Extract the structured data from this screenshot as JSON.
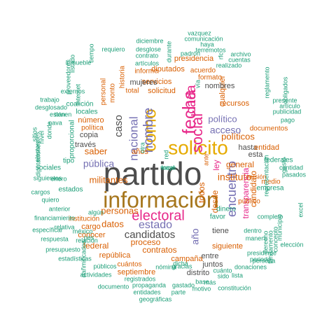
{
  "palette": {
    "gray": "#4d4d4d",
    "orange": "#d95f02",
    "purple": "#7570b3",
    "magenta": "#e7298a",
    "gold": "#e6ab02",
    "brown": "#a6761d",
    "teal": "#1b9e77",
    "olive": "#66a61e"
  },
  "words": [
    {
      "text": "partido",
      "color": "gray"
    },
    {
      "text": "información",
      "color": "brown"
    },
    {
      "text": "solicito",
      "color": "gold"
    },
    {
      "text": "electoral",
      "color": "magenta"
    },
    {
      "text": "como",
      "color": "gold"
    },
    {
      "text": "fecha",
      "color": "magenta"
    },
    {
      "text": "social",
      "color": "magenta"
    },
    {
      "text": "cada",
      "color": "magenta"
    },
    {
      "text": "nombre",
      "color": "purple"
    },
    {
      "text": "nacional",
      "color": "purple"
    },
    {
      "text": "encuentro",
      "color": "purple"
    },
    {
      "text": "estado",
      "color": "purple"
    },
    {
      "text": "candidatos",
      "color": "gray"
    },
    {
      "text": "acceso",
      "color": "purple"
    },
    {
      "text": "año",
      "color": "purple"
    },
    {
      "text": "caso",
      "color": "gray"
    },
    {
      "text": "pública",
      "color": "purple"
    },
    {
      "text": "instituto",
      "color": "orange"
    },
    {
      "text": "militantes",
      "color": "orange"
    },
    {
      "text": "personas",
      "color": "orange"
    },
    {
      "text": "político",
      "color": "purple"
    },
    {
      "text": "políticos",
      "color": "orange"
    },
    {
      "text": "general",
      "color": "orange"
    },
    {
      "text": "transparencia",
      "color": "magenta"
    },
    {
      "text": "candidato",
      "color": "orange"
    },
    {
      "text": "ley",
      "color": "magenta"
    },
    {
      "text": "federal",
      "color": "orange"
    },
    {
      "text": "proceso",
      "color": "orange"
    },
    {
      "text": "datos",
      "color": "orange"
    },
    {
      "text": "todos",
      "color": "orange"
    },
    {
      "text": "desde",
      "color": "orange"
    },
    {
      "text": "cualquier",
      "color": "orange"
    },
    {
      "text": "siguiente",
      "color": "orange"
    },
    {
      "text": "contratos",
      "color": "orange"
    },
    {
      "text": "república",
      "color": "orange"
    },
    {
      "text": "campaña",
      "color": "orange"
    },
    {
      "text": "saber",
      "color": "orange"
    },
    {
      "text": "número",
      "color": "orange"
    },
    {
      "text": "copia",
      "color": "gray"
    },
    {
      "text": "servicios",
      "color": "orange"
    },
    {
      "text": "solicitud",
      "color": "orange"
    },
    {
      "text": "mujeres",
      "color": "gray"
    },
    {
      "text": "diputados",
      "color": "orange"
    },
    {
      "text": "presidencia",
      "color": "orange"
    },
    {
      "text": "recursos",
      "color": "orange"
    },
    {
      "text": "nombres",
      "color": "gray"
    },
    {
      "text": "hasta",
      "color": "gray"
    },
    {
      "text": "entidad",
      "color": "orange"
    },
    {
      "text": "esta",
      "color": "gray"
    },
    {
      "text": "años",
      "color": "orange"
    },
    {
      "text": "través",
      "color": "gray"
    },
    {
      "text": "cargo",
      "color": "orange"
    },
    {
      "text": "conocer",
      "color": "orange"
    },
    {
      "text": "cuántos",
      "color": "orange"
    },
    {
      "text": "septiembre",
      "color": "orange"
    },
    {
      "text": "distrito",
      "color": "gray"
    },
    {
      "text": "juntos",
      "color": "gray"
    },
    {
      "text": "entre",
      "color": "gray"
    },
    {
      "text": "tiene",
      "color": "gray"
    },
    {
      "text": "documentos",
      "color": "orange"
    },
    {
      "text": "política",
      "color": "orange"
    },
    {
      "text": "formato",
      "color": "orange"
    },
    {
      "text": "acuerdo",
      "color": "orange"
    },
    {
      "text": "informe",
      "color": "orange"
    },
    {
      "text": "total",
      "color": "orange"
    },
    {
      "text": "monto",
      "color": "orange"
    },
    {
      "text": "historia",
      "color": "orange"
    },
    {
      "text": "personal",
      "color": "orange"
    },
    {
      "text": "sociales",
      "color": "teal"
    },
    {
      "text": "estados",
      "color": "teal"
    },
    {
      "text": "coalición",
      "color": "teal"
    },
    {
      "text": "locales",
      "color": "teal"
    },
    {
      "text": "tipo",
      "color": "teal"
    },
    {
      "text": "institución",
      "color": "orange"
    },
    {
      "text": "empresa",
      "color": "teal"
    },
    {
      "text": "medio",
      "color": "orange"
    },
    {
      "text": "federales",
      "color": "teal"
    },
    {
      "text": "dinero",
      "color": "teal"
    },
    {
      "text": "favor",
      "color": "teal"
    },
    {
      "text": "público",
      "color": "orange"
    },
    {
      "text": "manera",
      "color": "teal"
    },
    {
      "text": "persona",
      "color": "teal"
    },
    {
      "text": "relación",
      "color": "teal"
    },
    {
      "text": "enero",
      "color": "teal"
    },
    {
      "text": "quiero",
      "color": "teal"
    },
    {
      "text": "anterior",
      "color": "teal"
    },
    {
      "text": "cargos",
      "color": "teal"
    },
    {
      "text": "específicar",
      "color": "teal"
    },
    {
      "text": "respuesta",
      "color": "teal"
    },
    {
      "text": "presupuesto",
      "color": "teal"
    },
    {
      "text": "estadísticas",
      "color": "teal"
    },
    {
      "text": "dañmificados",
      "color": "teal"
    },
    {
      "text": "actividades",
      "color": "teal"
    },
    {
      "text": "públicos",
      "color": "teal"
    },
    {
      "text": "documento",
      "color": "teal"
    },
    {
      "text": "entidades",
      "color": "teal"
    },
    {
      "text": "geográficas",
      "color": "teal"
    },
    {
      "text": "propaganda",
      "color": "teal"
    },
    {
      "text": "registrados",
      "color": "teal"
    },
    {
      "text": "gastado",
      "color": "teal"
    },
    {
      "text": "parte",
      "color": "teal"
    },
    {
      "text": "constitución",
      "color": "teal"
    },
    {
      "text": "donaciones",
      "color": "teal"
    },
    {
      "text": "periodo",
      "color": "teal"
    },
    {
      "text": "presidente",
      "color": "teal"
    },
    {
      "text": "fundamento",
      "color": "teal"
    },
    {
      "text": "municipio",
      "color": "teal"
    },
    {
      "text": "gasto",
      "color": "teal"
    },
    {
      "text": "cantidad",
      "color": "teal"
    },
    {
      "text": "pasados",
      "color": "teal"
    },
    {
      "text": "pago",
      "color": "teal"
    },
    {
      "text": "publicidad",
      "color": "teal"
    },
    {
      "text": "artículo",
      "color": "teal"
    },
    {
      "text": "presente",
      "color": "teal"
    },
    {
      "text": "obligados",
      "color": "teal"
    },
    {
      "text": "reglamento",
      "color": "teal"
    },
    {
      "text": "archivo",
      "color": "teal"
    },
    {
      "text": "cuentas",
      "color": "teal"
    },
    {
      "text": "realizado",
      "color": "teal"
    },
    {
      "text": "haya",
      "color": "teal"
    },
    {
      "text": "vazquez",
      "color": "teal"
    },
    {
      "text": "comunicación",
      "color": "teal"
    },
    {
      "text": "terremotos",
      "color": "teal"
    },
    {
      "text": "diciembre",
      "color": "teal"
    },
    {
      "text": "desglose",
      "color": "teal"
    },
    {
      "text": "durante",
      "color": "teal"
    },
    {
      "text": "padrón",
      "color": "teal"
    },
    {
      "text": "contrato",
      "color": "teal"
    },
    {
      "text": "artículos",
      "color": "teal"
    },
    {
      "text": "requiero",
      "color": "teal"
    },
    {
      "text": "tiempo",
      "color": "teal"
    },
    {
      "text": "inmueble",
      "color": "teal"
    },
    {
      "text": "internet",
      "color": "teal"
    },
    {
      "text": "listado",
      "color": "teal"
    },
    {
      "text": "proveedores",
      "color": "teal"
    },
    {
      "text": "externos",
      "color": "teal"
    },
    {
      "text": "trabajo",
      "color": "teal"
    },
    {
      "text": "desglosado",
      "color": "teal"
    },
    {
      "text": "están",
      "color": "teal"
    },
    {
      "text": "nava",
      "color": "teal"
    },
    {
      "text": "sitios",
      "color": "teal"
    },
    {
      "text": "electorales",
      "color": "teal"
    },
    {
      "text": "diputaciones",
      "color": "teal"
    },
    {
      "text": "siguientes",
      "color": "teal"
    },
    {
      "text": "financiamiento",
      "color": "teal"
    },
    {
      "text": "relativa",
      "color": "teal"
    },
    {
      "text": "méxico",
      "color": "teal"
    },
    {
      "text": "algún",
      "color": "teal"
    },
    {
      "text": "nivel",
      "color": "teal"
    },
    {
      "text": "donde",
      "color": "teal"
    },
    {
      "text": "proporcional",
      "color": "teal"
    },
    {
      "text": "representación",
      "color": "teal"
    },
    {
      "text": "versión",
      "color": "orange"
    },
    {
      "text": "elección",
      "color": "teal"
    },
    {
      "text": "excel",
      "color": "teal"
    },
    {
      "text": "derecho",
      "color": "teal"
    },
    {
      "text": "concepto",
      "color": "teal"
    },
    {
      "text": "nómina",
      "color": "teal"
    },
    {
      "text": "gracias",
      "color": "teal"
    },
    {
      "text": "base",
      "color": "teal"
    },
    {
      "text": "motivo",
      "color": "teal"
    },
    {
      "text": "cuánto",
      "color": "teal"
    },
    {
      "text": "sido",
      "color": "teal"
    },
    {
      "text": "lista",
      "color": "teal"
    },
    {
      "text": "más",
      "color": "teal"
    },
    {
      "text": "completo",
      "color": "teal"
    },
    {
      "text": "dentro",
      "color": "teal"
    },
    {
      "text": "tienen",
      "color": "teal"
    },
    {
      "text": "pes",
      "color": "teal"
    },
    {
      "text": "otra",
      "color": "teal"
    },
    {
      "text": "red",
      "color": "teal"
    },
    {
      "text": "vía",
      "color": "teal"
    },
    {
      "text": "dicha",
      "color": "teal"
    },
    {
      "text": "rfc",
      "color": "teal"
    },
    {
      "text": "ante",
      "color": "orange"
    },
    {
      "text": "mayo",
      "color": "teal"
    },
    {
      "text": "local",
      "color": "teal"
    }
  ]
}
